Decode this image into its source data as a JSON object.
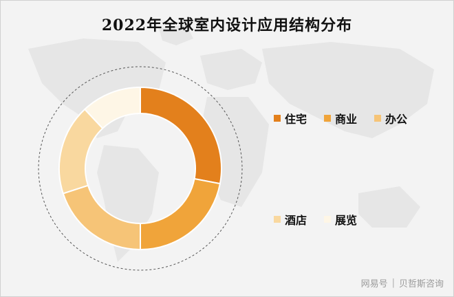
{
  "chart_data": {
    "type": "pie",
    "title": "2022年全球室内设计应用结构分布",
    "categories": [
      "住宅",
      "商业",
      "办公",
      "酒店",
      "展览"
    ],
    "values": [
      28,
      22,
      20,
      18,
      12
    ],
    "colors": [
      "#E3801C",
      "#F0A43A",
      "#F6C477",
      "#F9D89F",
      "#FEF6E6"
    ],
    "legend_placement": "right"
  },
  "watermark": {
    "source": "网易号",
    "author": "贝哲斯咨询"
  }
}
